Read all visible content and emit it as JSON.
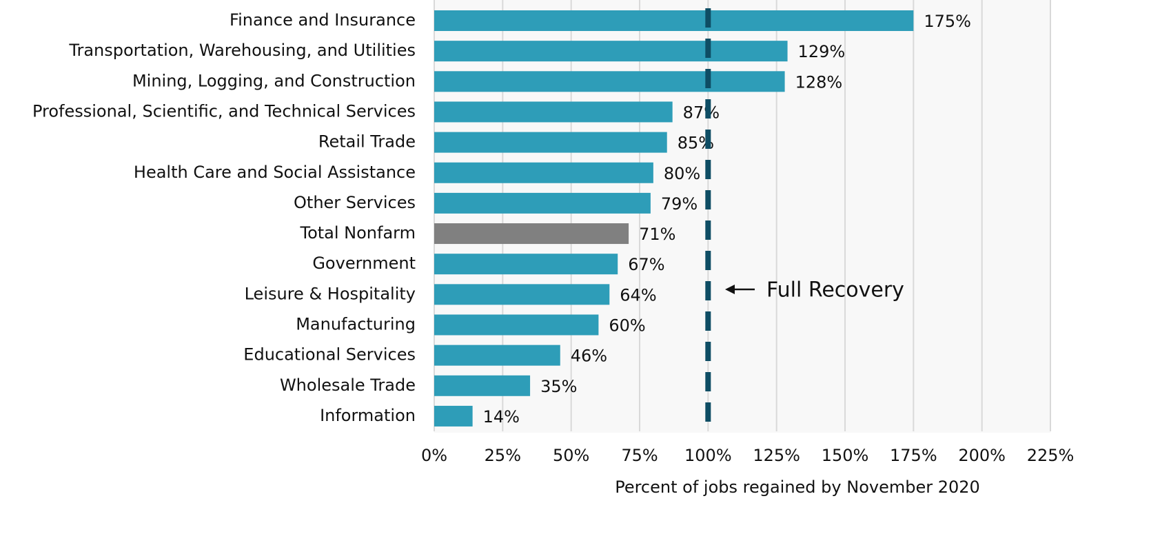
{
  "chart_data": {
    "type": "barh",
    "categories": [
      "Finance and Insurance",
      "Transportation, Warehousing, and Utilities",
      "Mining, Logging, and Construction",
      "Professional, Scientific, and Technical Services",
      "Retail Trade",
      "Health Care and Social Assistance",
      "Other Services",
      "Total Nonfarm",
      "Government",
      "Leisure & Hospitality",
      "Manufacturing",
      "Educational Services",
      "Wholesale Trade",
      "Information"
    ],
    "values": [
      175,
      129,
      128,
      87,
      85,
      80,
      79,
      71,
      67,
      64,
      60,
      46,
      35,
      14
    ],
    "value_labels": [
      "175%",
      "129%",
      "128%",
      "87%",
      "85%",
      "80%",
      "79%",
      "71%",
      "67%",
      "64%",
      "60%",
      "46%",
      "35%",
      "14%"
    ],
    "colors": [
      "#2e9db8",
      "#2e9db8",
      "#2e9db8",
      "#2e9db8",
      "#2e9db8",
      "#2e9db8",
      "#2e9db8",
      "#808080",
      "#2e9db8",
      "#2e9db8",
      "#2e9db8",
      "#2e9db8",
      "#2e9db8",
      "#2e9db8"
    ],
    "xlim": [
      0,
      225
    ],
    "xticks": [
      {
        "value": 0,
        "label": "0%"
      },
      {
        "value": 25,
        "label": "25%"
      },
      {
        "value": 50,
        "label": "50%"
      },
      {
        "value": 75,
        "label": "75%"
      },
      {
        "value": 100,
        "label": "100%"
      },
      {
        "value": 125,
        "label": "125%"
      },
      {
        "value": 150,
        "label": "150%"
      },
      {
        "value": 175,
        "label": "175%"
      },
      {
        "value": 200,
        "label": "200%"
      },
      {
        "value": 225,
        "label": "225%"
      }
    ],
    "x_label": "Percent of jobs regained by November 2020",
    "grid": true,
    "reference_line": {
      "value": 100,
      "label": "Full Recovery",
      "color": "#0e4d64"
    }
  }
}
